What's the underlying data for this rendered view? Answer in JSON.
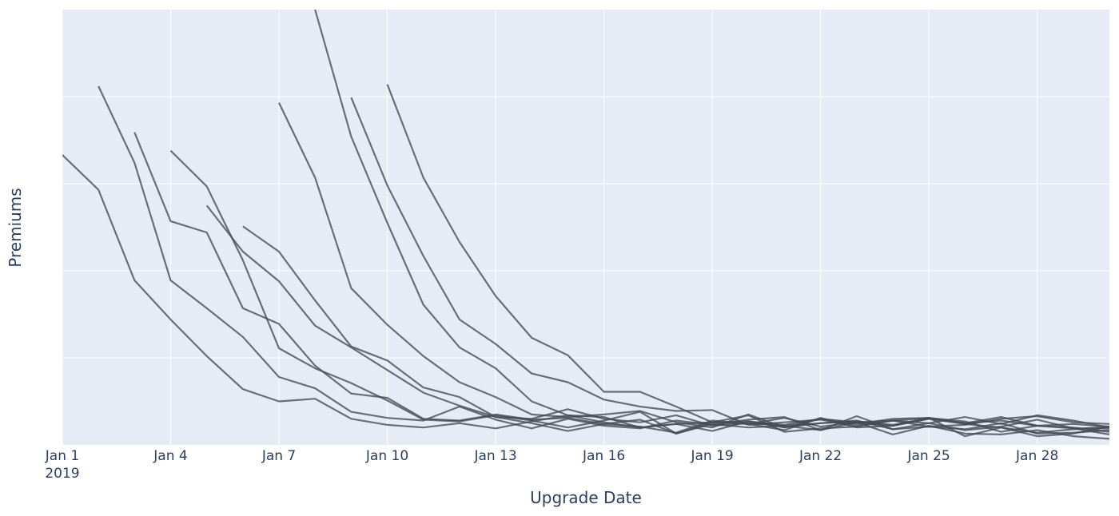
{
  "chart_data": {
    "type": "line",
    "title": "",
    "xlabel": "Upgrade Date",
    "ylabel": "Premiums",
    "x_axis_type": "date",
    "xlim": [
      "2019-01-01",
      "2019-01-30"
    ],
    "ylim": [
      0,
      5
    ],
    "grid": true,
    "legend": "none",
    "x_ticks": [
      {
        "date": "2019-01-01",
        "label": "Jan 1",
        "sublabel": "2019"
      },
      {
        "date": "2019-01-04",
        "label": "Jan 4"
      },
      {
        "date": "2019-01-07",
        "label": "Jan 7"
      },
      {
        "date": "2019-01-10",
        "label": "Jan 10"
      },
      {
        "date": "2019-01-13",
        "label": "Jan 13"
      },
      {
        "date": "2019-01-16",
        "label": "Jan 16"
      },
      {
        "date": "2019-01-19",
        "label": "Jan 19"
      },
      {
        "date": "2019-01-22",
        "label": "Jan 22"
      },
      {
        "date": "2019-01-25",
        "label": "Jan 25"
      },
      {
        "date": "2019-01-28",
        "label": "Jan 28"
      }
    ],
    "y_gridlines": [
      1,
      2,
      3,
      4
    ],
    "line_color": "#444a55",
    "background_color": "#e5ecf6",
    "series": [
      {
        "start": "2019-01-01",
        "values": [
          3.33,
          2.93,
          1.89,
          1.44,
          1.02,
          0.64,
          0.5,
          0.53,
          0.3,
          0.23,
          0.2,
          0.25,
          0.19,
          0.27,
          0.34,
          0.26,
          0.2,
          0.24,
          0.16,
          0.27,
          0.2,
          0.3,
          0.26,
          0.22,
          0.3,
          0.24,
          0.2,
          0.14,
          0.18,
          0.21
        ]
      },
      {
        "start": "2019-01-02",
        "values": [
          4.12,
          3.24,
          1.89,
          1.57,
          1.24,
          0.78,
          0.65,
          0.38,
          0.31,
          0.28,
          0.44,
          0.29,
          0.19,
          0.3,
          0.22,
          0.19,
          0.28,
          0.23,
          0.29,
          0.32,
          0.17,
          0.26,
          0.12,
          0.22,
          0.13,
          0.12,
          0.17,
          0.1,
          0.07
        ]
      },
      {
        "start": "2019-01-03",
        "values": [
          3.59,
          2.57,
          2.44,
          1.57,
          1.39,
          0.91,
          0.59,
          0.54,
          0.3,
          0.28,
          0.35,
          0.29,
          0.31,
          0.24,
          0.29,
          0.13,
          0.24,
          0.2,
          0.22,
          0.25,
          0.28,
          0.18,
          0.21,
          0.18,
          0.25,
          0.13,
          0.14,
          0.17
        ]
      },
      {
        "start": "2019-01-04",
        "values": [
          3.38,
          2.97,
          2.12,
          1.11,
          0.88,
          0.71,
          0.51,
          0.29,
          0.27,
          0.34,
          0.28,
          0.2,
          0.28,
          0.38,
          0.13,
          0.26,
          0.24,
          0.31,
          0.21,
          0.26,
          0.28,
          0.31,
          0.1,
          0.2,
          0.1,
          0.13,
          0.21,
          0.16
        ]
      },
      {
        "start": "2019-01-05",
        "values": [
          2.75,
          2.22,
          1.88,
          1.37,
          1.12,
          0.86,
          0.6,
          0.45,
          0.32,
          0.25,
          0.16,
          0.24,
          0.21,
          0.14,
          0.28,
          0.24,
          0.17,
          0.31,
          0.2,
          0.22,
          0.3,
          0.25,
          0.32,
          0.22,
          0.2,
          0.15,
          0.2,
          0.14
        ]
      },
      {
        "start": "2019-01-06",
        "values": [
          2.51,
          2.22,
          1.66,
          1.13,
          0.97,
          0.66,
          0.55,
          0.32,
          0.3,
          0.41,
          0.3,
          0.26,
          0.34,
          0.22,
          0.25,
          0.22,
          0.17,
          0.33,
          0.18,
          0.25,
          0.17,
          0.21,
          0.29,
          0.19,
          0.12,
          0.2,
          0.1
        ]
      },
      {
        "start": "2019-01-07",
        "values": [
          3.93,
          3.07,
          1.8,
          1.38,
          1.02,
          0.72,
          0.55,
          0.35,
          0.32,
          0.35,
          0.39,
          0.26,
          0.2,
          0.35,
          0.2,
          0.25,
          0.27,
          0.23,
          0.31,
          0.27,
          0.15,
          0.22,
          0.19,
          0.19,
          0.24,
          0.13,
          0.14,
          0.23
        ]
      },
      {
        "start": "2019-01-08",
        "values": [
          5.0,
          3.54,
          2.55,
          1.61,
          1.12,
          0.88,
          0.5,
          0.34,
          0.32,
          0.2,
          0.24,
          0.26,
          0.34,
          0.15,
          0.19,
          0.21,
          0.28,
          0.25,
          0.32,
          0.24,
          0.34,
          0.28,
          0.2,
          0.2,
          0.24,
          0.14,
          0.13,
          0.12
        ]
      },
      {
        "start": "2019-01-09",
        "values": [
          3.99,
          2.98,
          2.17,
          1.44,
          1.16,
          0.82,
          0.72,
          0.52,
          0.44,
          0.39,
          0.4,
          0.23,
          0.26,
          0.29,
          0.22,
          0.28,
          0.21,
          0.23,
          0.3,
          0.33,
          0.26,
          0.24,
          0.27,
          0.2,
          0.2,
          0.2,
          0.23,
          0.16
        ]
      },
      {
        "start": "2019-01-10",
        "values": [
          4.14,
          3.07,
          2.33,
          1.71,
          1.23,
          1.03,
          0.61,
          0.61,
          0.44,
          0.26,
          0.27,
          0.23,
          0.3,
          0.24,
          0.3,
          0.31,
          0.25,
          0.28,
          0.22,
          0.24,
          0.21,
          0.2,
          0.19,
          0.16,
          0.17,
          0.23,
          0.25,
          0.25
        ]
      }
    ]
  }
}
